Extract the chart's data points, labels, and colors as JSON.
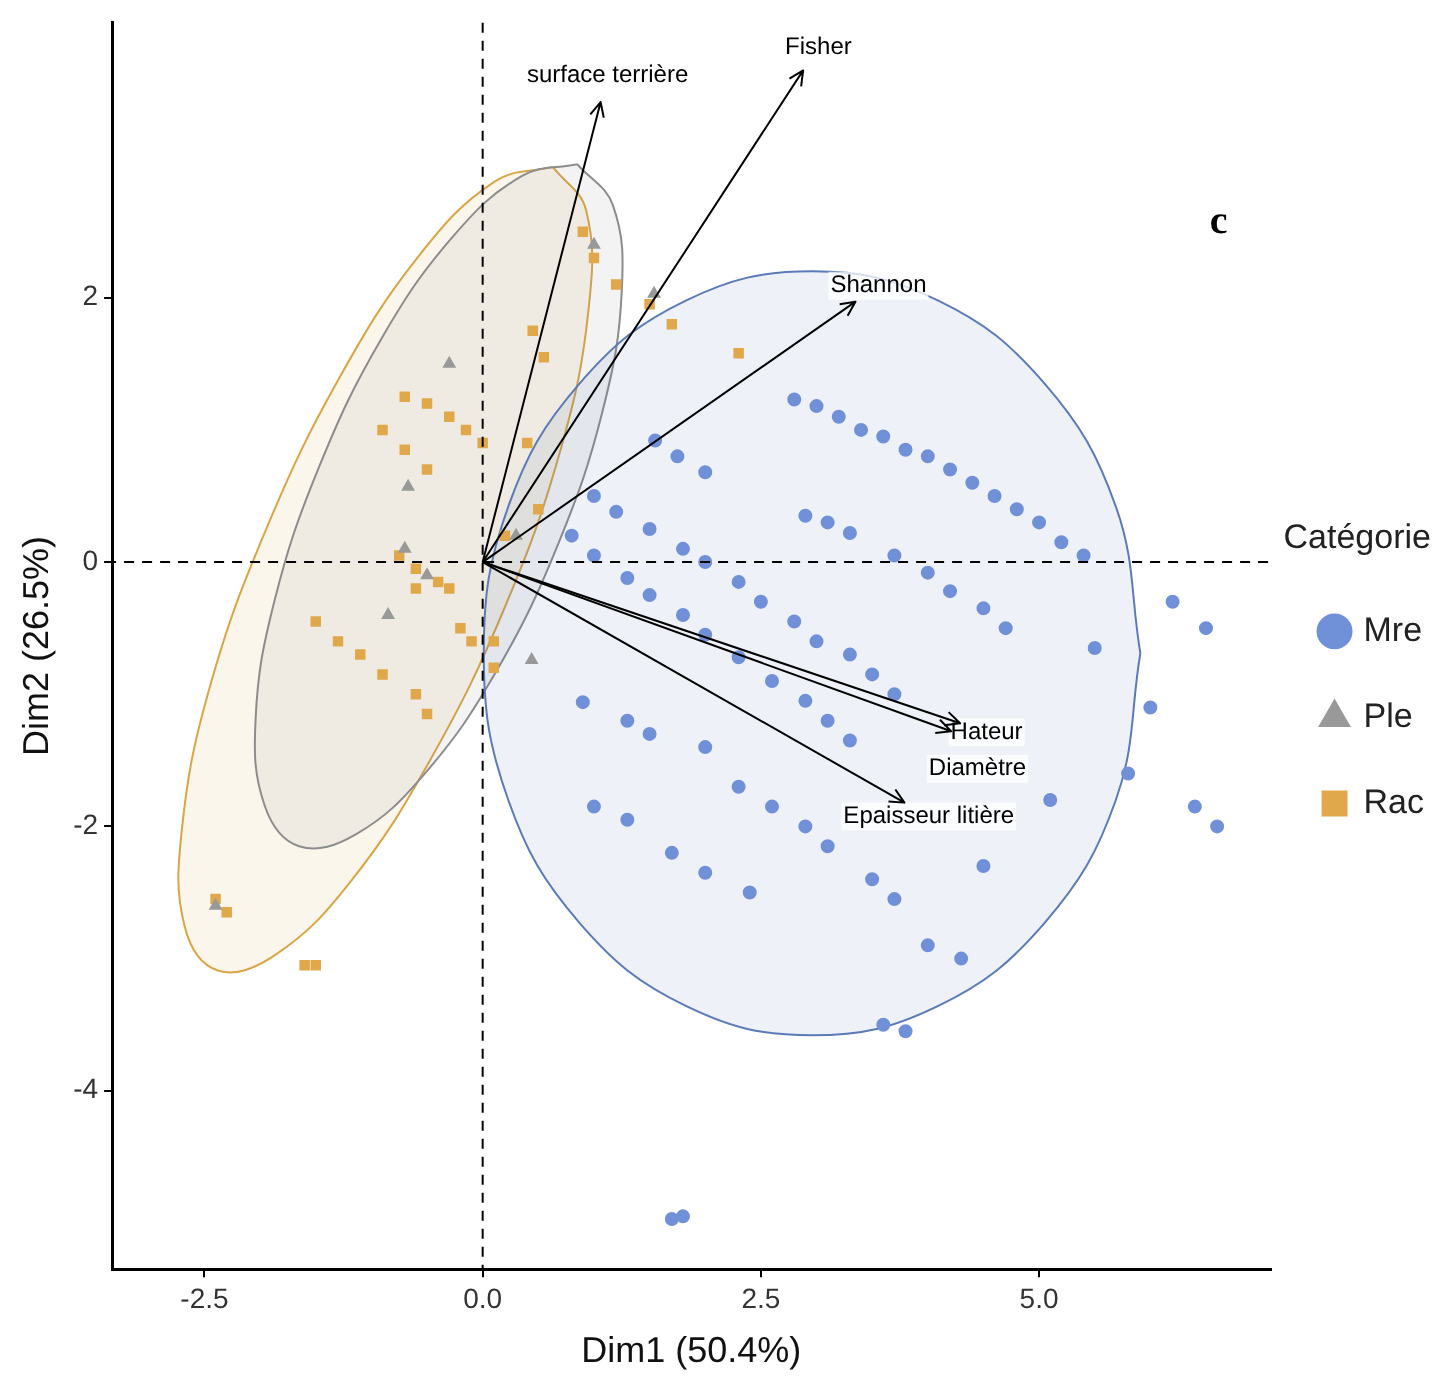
{
  "chart_data": {
    "type": "scatter",
    "xlabel": "Dim1 (50.4%)",
    "ylabel": "Dim2 (26.5%)",
    "legend_title": "Catégorie",
    "legend": "right",
    "grid": false,
    "xlim": [
      -3.33,
      7.08
    ],
    "ylim": [
      -5.35,
      4.08
    ],
    "xticks": [
      -2.5,
      {
        "value": 0,
        "label": "0.0"
      },
      2.5,
      {
        "value": 5,
        "label": "5.0"
      }
    ],
    "yticks": [
      -4,
      -2,
      0,
      2
    ],
    "ref_lines": [
      {
        "axis": "x",
        "value": 0,
        "color": "#000000",
        "line_style": "dashed"
      },
      {
        "axis": "y",
        "value": 0,
        "color": "#000000",
        "line_style": "dashed"
      }
    ],
    "annotations": [
      "c"
    ],
    "series": [
      {
        "type": "area",
        "color": "#5a7ab8",
        "x": [
          5.91,
          5.69,
          5.05,
          4.09,
          2.96,
          1.83,
          0.87,
          0.23,
          0.01,
          0.23,
          0.87,
          1.83,
          2.96,
          4.09,
          5.05,
          5.69,
          5.91
        ],
        "values": [
          -0.69,
          0.42,
          1.35,
          1.98,
          2.2,
          1.98,
          1.35,
          0.42,
          -0.69,
          -1.8,
          -2.73,
          -3.36,
          -3.58,
          -3.36,
          -2.73,
          -1.8,
          -0.69
        ]
      },
      {
        "type": "area",
        "color": "#8c8c8c",
        "x": [
          0.85,
          1.17,
          1.25,
          1.08,
          0.68,
          0.12,
          -0.52,
          -1.14,
          -1.65,
          -1.96,
          -2.04,
          -1.87,
          -1.47,
          -0.91,
          -0.27,
          0.35,
          0.85
        ],
        "values": [
          3.01,
          2.7,
          2.05,
          1.15,
          0.14,
          -0.83,
          -1.6,
          -2.06,
          -2.15,
          -1.84,
          -1.18,
          -0.29,
          0.72,
          1.69,
          2.46,
          2.92,
          3.01
        ]
      },
      {
        "type": "area",
        "color": "#d9a545",
        "x": [
          0.63,
          0.93,
          0.95,
          0.7,
          0.2,
          -0.46,
          -1.18,
          -1.86,
          -2.38,
          -2.68,
          -2.7,
          -2.45,
          -1.95,
          -1.29,
          -0.57,
          0.11,
          0.63
        ],
        "values": [
          2.99,
          2.66,
          1.9,
          0.85,
          -0.34,
          -1.48,
          -2.41,
          -2.97,
          -3.09,
          -2.75,
          -2.0,
          -0.94,
          0.24,
          1.39,
          2.32,
          2.88,
          2.99
        ]
      },
      {
        "name": "Mre",
        "color": "#7090d8",
        "marker": "circle",
        "x": [
          2.8,
          3.0,
          3.2,
          3.4,
          3.6,
          3.8,
          4.0,
          4.2,
          4.4,
          4.6,
          4.8,
          5.0,
          5.2,
          5.4,
          1.55,
          1.75,
          2.0,
          2.9,
          3.1,
          3.3,
          3.7,
          4.0,
          4.2,
          4.5,
          4.7,
          1.0,
          1.2,
          1.5,
          1.8,
          2.0,
          2.3,
          2.5,
          2.8,
          3.0,
          3.3,
          3.5,
          3.7,
          0.8,
          1.0,
          1.3,
          1.5,
          1.8,
          2.0,
          2.3,
          2.6,
          2.9,
          3.1,
          3.3,
          0.9,
          1.3,
          1.5,
          2.0,
          2.3,
          2.6,
          2.9,
          3.1,
          1.0,
          1.3,
          1.7,
          2.0,
          2.4,
          3.5,
          3.7,
          4.0,
          4.3,
          3.6,
          3.8,
          4.5,
          5.1,
          5.8,
          6.4,
          6.6,
          6.0,
          6.2,
          6.5,
          5.5,
          1.7,
          1.8
        ],
        "values": [
          1.23,
          1.18,
          1.1,
          1.0,
          0.95,
          0.85,
          0.8,
          0.7,
          0.6,
          0.5,
          0.4,
          0.3,
          0.15,
          0.05,
          0.92,
          0.8,
          0.68,
          0.35,
          0.3,
          0.22,
          0.05,
          -0.08,
          -0.22,
          -0.35,
          -0.5,
          0.5,
          0.38,
          0.25,
          0.1,
          0.0,
          -0.15,
          -0.3,
          -0.45,
          -0.6,
          -0.7,
          -0.85,
          -1.0,
          0.2,
          0.05,
          -0.12,
          -0.25,
          -0.4,
          -0.55,
          -0.72,
          -0.9,
          -1.05,
          -1.2,
          -1.35,
          -1.06,
          -1.2,
          -1.3,
          -1.4,
          -1.7,
          -1.85,
          -2.0,
          -2.15,
          -1.85,
          -1.95,
          -2.2,
          -2.35,
          -2.5,
          -2.4,
          -2.55,
          -2.9,
          -3.0,
          -3.5,
          -3.55,
          -2.3,
          -1.8,
          -1.6,
          -1.85,
          -2.0,
          -1.1,
          -0.3,
          -0.5,
          -0.65,
          -4.97,
          -4.95
        ]
      },
      {
        "name": "Ple",
        "color": "#999999",
        "marker": "triangle",
        "x": [
          -0.67,
          1.0,
          1.54,
          0.44,
          -0.7,
          -0.5,
          -2.4,
          -0.3,
          0.3,
          -0.85
        ],
        "values": [
          0.57,
          2.4,
          2.03,
          -0.74,
          0.1,
          -0.1,
          -2.6,
          1.5,
          0.2,
          -0.4
        ]
      },
      {
        "name": "Rac",
        "color": "#e0a84a",
        "marker": "square",
        "x": [
          0.9,
          1.0,
          1.2,
          1.5,
          1.7,
          0.45,
          0.55,
          -0.7,
          -0.5,
          -0.3,
          -0.15,
          0.0,
          -0.9,
          -0.7,
          -0.5,
          0.4,
          2.3,
          0.5,
          0.2,
          -0.75,
          -0.6,
          -0.4,
          -0.3,
          -0.6,
          -1.5,
          -1.3,
          -1.1,
          -0.9,
          -0.6,
          -0.5,
          -0.2,
          -0.1,
          0.1,
          0.1,
          -2.4,
          -2.3,
          -1.6,
          -1.5
        ],
        "values": [
          2.5,
          2.3,
          2.1,
          1.95,
          1.8,
          1.75,
          1.55,
          1.25,
          1.2,
          1.1,
          1.0,
          0.9,
          1.0,
          0.85,
          0.7,
          0.9,
          1.58,
          0.4,
          0.2,
          0.05,
          -0.05,
          -0.15,
          -0.2,
          -0.2,
          -0.45,
          -0.6,
          -0.7,
          -0.85,
          -1.0,
          -1.15,
          -0.5,
          -0.6,
          -0.6,
          -0.8,
          -2.55,
          -2.65,
          -3.05,
          -3.05
        ]
      },
      {
        "type": "line",
        "name": "surface terrière",
        "color": "#000000",
        "x": [
          0,
          1.06
        ],
        "values": [
          0,
          3.48
        ]
      },
      {
        "type": "line",
        "name": "Fisher",
        "color": "#000000",
        "x": [
          0,
          2.88
        ],
        "values": [
          0,
          3.72
        ]
      },
      {
        "type": "line",
        "name": "Shannon",
        "color": "#000000",
        "x": [
          0,
          3.35
        ],
        "values": [
          0,
          1.97
        ]
      },
      {
        "type": "line",
        "name": "Hateur",
        "color": "#000000",
        "x": [
          0,
          4.29
        ],
        "values": [
          0,
          -1.22
        ]
      },
      {
        "type": "line",
        "name": "Diamètre",
        "color": "#000000",
        "x": [
          0,
          4.21
        ],
        "values": [
          0,
          -1.28
        ]
      },
      {
        "type": "line",
        "name": "Epaisseur litière",
        "color": "#000000",
        "x": [
          0,
          3.79
        ],
        "values": [
          0,
          -1.82
        ]
      }
    ]
  }
}
